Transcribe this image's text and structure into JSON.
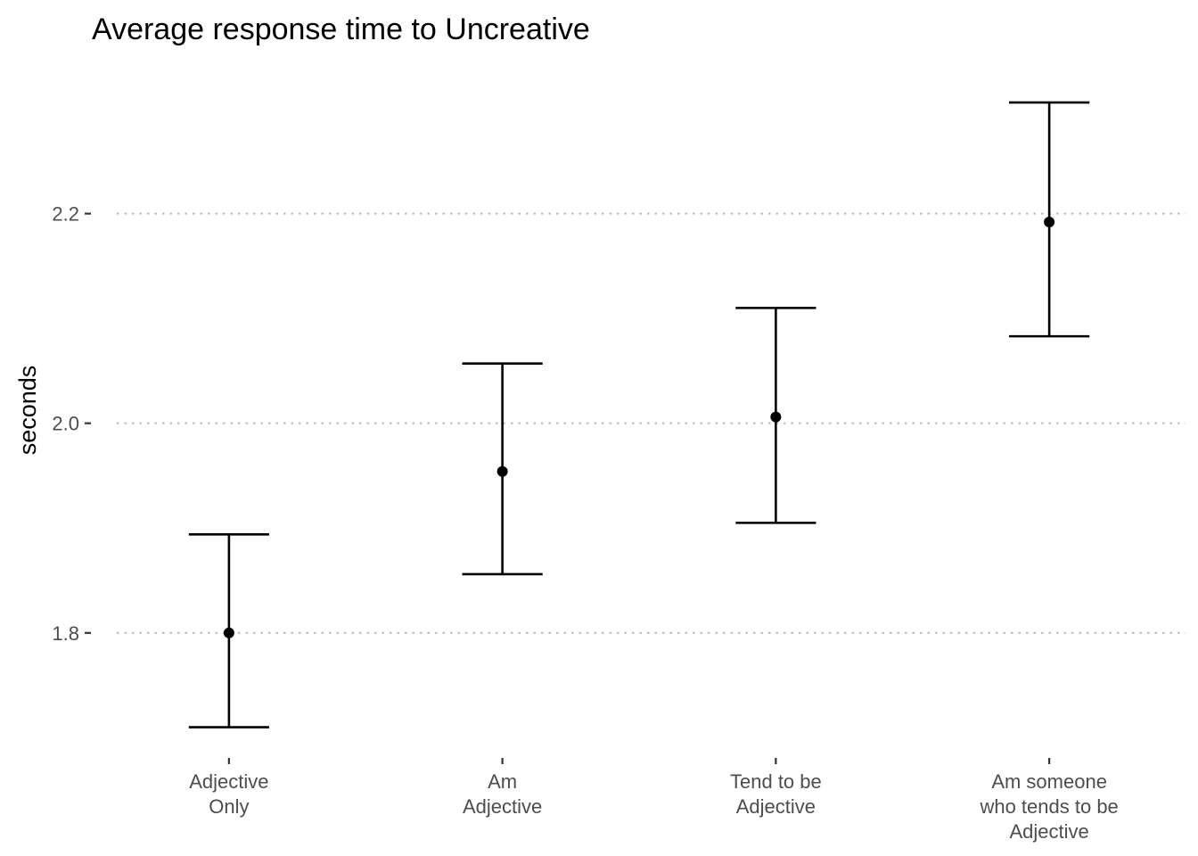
{
  "chart_data": {
    "type": "scatter",
    "title": "Average response time to Uncreative",
    "xlabel": "",
    "ylabel": "seconds",
    "categories": [
      [
        "Adjective",
        "Only"
      ],
      [
        "Am",
        "Adjective"
      ],
      [
        "Tend to be",
        "Adjective"
      ],
      [
        "Am someone",
        "who tends to be",
        "Adjective"
      ]
    ],
    "points": [
      {
        "mean": 1.8,
        "low": 1.71,
        "high": 1.894
      },
      {
        "mean": 1.954,
        "low": 1.856,
        "high": 2.057
      },
      {
        "mean": 2.006,
        "low": 1.905,
        "high": 2.11
      },
      {
        "mean": 2.192,
        "low": 2.083,
        "high": 2.306
      }
    ],
    "yticks": [
      1.8,
      2.0,
      2.2
    ],
    "ytick_labels": [
      "1.8",
      "2.0",
      "2.2"
    ],
    "ylim": [
      1.685,
      2.34
    ],
    "grid": "horizontal-major-dotted",
    "legend": "none"
  }
}
